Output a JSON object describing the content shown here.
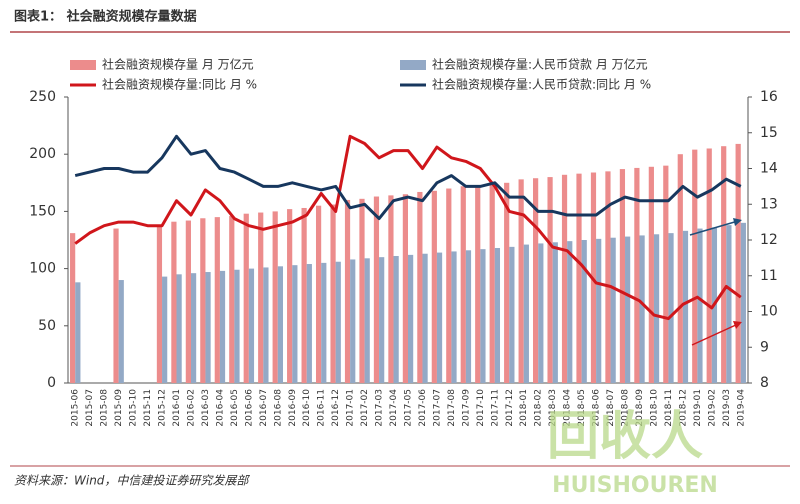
{
  "chart_data": {
    "type": "bar",
    "title": "图表1：  社会融资规模存量数据",
    "source": "资料来源：Wind，中信建投证券研究发展部",
    "watermark": [
      "回收人",
      "HUISHOUREN"
    ],
    "categories": [
      "2015-06",
      "2015-07",
      "2015-08",
      "2015-09",
      "2015-10",
      "2015-11",
      "2015-12",
      "2016-01",
      "2016-02",
      "2016-03",
      "2016-04",
      "2016-05",
      "2016-06",
      "2016-07",
      "2016-08",
      "2016-09",
      "2016-10",
      "2016-11",
      "2016-12",
      "2017-01",
      "2017-02",
      "2017-03",
      "2017-04",
      "2017-05",
      "2017-06",
      "2017-07",
      "2017-08",
      "2017-09",
      "2017-10",
      "2017-11",
      "2017-12",
      "2018-01",
      "2018-02",
      "2018-03",
      "2018-04",
      "2018-05",
      "2018-06",
      "2018-07",
      "2018-08",
      "2018-09",
      "2018-10",
      "2018-11",
      "2018-12",
      "2019-01",
      "2019-02",
      "2019-03",
      "2019-04"
    ],
    "series": [
      {
        "name": "社会融资规模存量 月 万亿元",
        "type": "bar",
        "color": "#ec8c8c",
        "values": [
          131,
          null,
          null,
          135,
          null,
          null,
          138,
          141,
          142,
          144,
          145,
          146,
          148,
          149,
          150,
          152,
          153,
          155,
          156,
          160,
          161,
          163,
          164,
          165,
          167,
          168,
          170,
          172,
          173,
          175,
          175,
          178,
          179,
          180,
          182,
          183,
          184,
          185,
          187,
          188,
          189,
          190,
          200,
          204,
          205,
          207,
          209
        ]
      },
      {
        "name": "社会融资规模存量:人民币贷款 月 万亿元",
        "type": "bar",
        "color": "#93a9c6",
        "values": [
          88,
          null,
          null,
          90,
          null,
          null,
          93,
          95,
          96,
          97,
          98,
          99,
          100,
          101,
          102,
          103,
          104,
          105,
          106,
          108,
          109,
          110,
          111,
          112,
          113,
          114,
          115,
          116,
          117,
          118,
          119,
          121,
          122,
          123,
          124,
          125,
          126,
          127,
          128,
          129,
          130,
          131,
          133,
          135,
          136,
          138,
          140
        ]
      },
      {
        "name": "社会融资规模存量:同比 月 %",
        "type": "line",
        "axis": "y2",
        "color": "#d0161b",
        "values": [
          11.9,
          12.2,
          12.4,
          12.5,
          12.5,
          12.4,
          12.4,
          13.1,
          12.7,
          13.4,
          13.1,
          12.6,
          12.4,
          12.3,
          12.4,
          12.5,
          12.7,
          13.3,
          12.8,
          14.9,
          14.7,
          14.3,
          14.5,
          14.5,
          14.0,
          14.6,
          14.3,
          14.2,
          14.0,
          13.5,
          12.8,
          12.7,
          12.3,
          11.8,
          11.7,
          11.3,
          10.8,
          10.7,
          10.5,
          10.3,
          9.9,
          9.8,
          10.2,
          10.4,
          10.1,
          10.7,
          10.4
        ]
      },
      {
        "name": "社会融资规模存量:人民币贷款:同比 月 %",
        "type": "line",
        "axis": "y2",
        "color": "#17375e",
        "values": [
          13.8,
          13.9,
          14.0,
          14.0,
          13.9,
          13.9,
          14.3,
          14.9,
          14.4,
          14.5,
          14.0,
          13.9,
          13.7,
          13.5,
          13.5,
          13.6,
          13.5,
          13.4,
          13.5,
          12.9,
          13.0,
          12.6,
          13.1,
          13.2,
          13.1,
          13.6,
          13.8,
          13.5,
          13.5,
          13.6,
          13.2,
          13.2,
          12.8,
          12.8,
          12.7,
          12.7,
          12.7,
          13.0,
          13.2,
          13.1,
          13.1,
          13.1,
          13.5,
          13.2,
          13.4,
          13.7,
          13.5
        ]
      }
    ],
    "ylim": [
      0,
      250
    ],
    "yticks": [
      0,
      50,
      100,
      150,
      200,
      250
    ],
    "y2lim": [
      8,
      16
    ],
    "y2ticks": [
      8,
      9,
      10,
      11,
      12,
      13,
      14,
      15,
      16
    ],
    "grid": false
  }
}
